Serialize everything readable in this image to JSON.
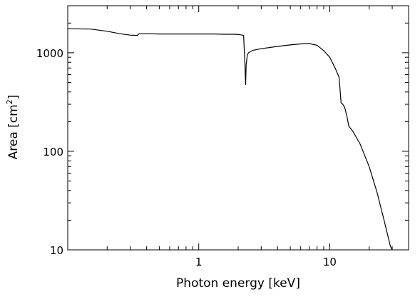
{
  "chart_data": {
    "type": "line",
    "title": "",
    "xlabel": "Photon energy [keV]",
    "ylabel_main": "Area [cm",
    "ylabel_sup": "2",
    "ylabel_close": "]",
    "xscale": "log",
    "yscale": "log",
    "xlim": [
      0.1,
      40
    ],
    "ylim": [
      10,
      3000
    ],
    "grid": false,
    "legend": "none",
    "line_color": "#000000",
    "x_ticks": [
      {
        "value": 1,
        "label": "1"
      },
      {
        "value": 10,
        "label": "10"
      }
    ],
    "y_ticks": [
      {
        "value": 10,
        "label": "10"
      },
      {
        "value": 100,
        "label": "100"
      },
      {
        "value": 1000,
        "label": "1000"
      }
    ],
    "series": [
      {
        "x": [
          0.1,
          0.15,
          0.2,
          0.25,
          0.3,
          0.34,
          0.35,
          0.4,
          0.5,
          0.7,
          1.0,
          1.3,
          1.6,
          1.9,
          2.1,
          2.2,
          2.25,
          2.28,
          2.3,
          2.35,
          2.4,
          2.6,
          3.0,
          3.5,
          4.0,
          5.0,
          6.0,
          7.0,
          8.0,
          9.0,
          10.0,
          11.0,
          11.8,
          12.0,
          12.2,
          12.6,
          13.0,
          13.5,
          14.0,
          15.0,
          17.0,
          20.0,
          23.0,
          26.0,
          29.0,
          30.0
        ],
        "y": [
          1750,
          1740,
          1650,
          1560,
          1510,
          1500,
          1560,
          1560,
          1550,
          1550,
          1550,
          1550,
          1540,
          1540,
          1520,
          1500,
          800,
          470,
          760,
          950,
          1000,
          1060,
          1100,
          1130,
          1160,
          1200,
          1230,
          1240,
          1190,
          1050,
          900,
          700,
          560,
          420,
          310,
          300,
          280,
          230,
          180,
          160,
          120,
          70,
          38,
          20,
          11,
          10
        ]
      }
    ]
  }
}
